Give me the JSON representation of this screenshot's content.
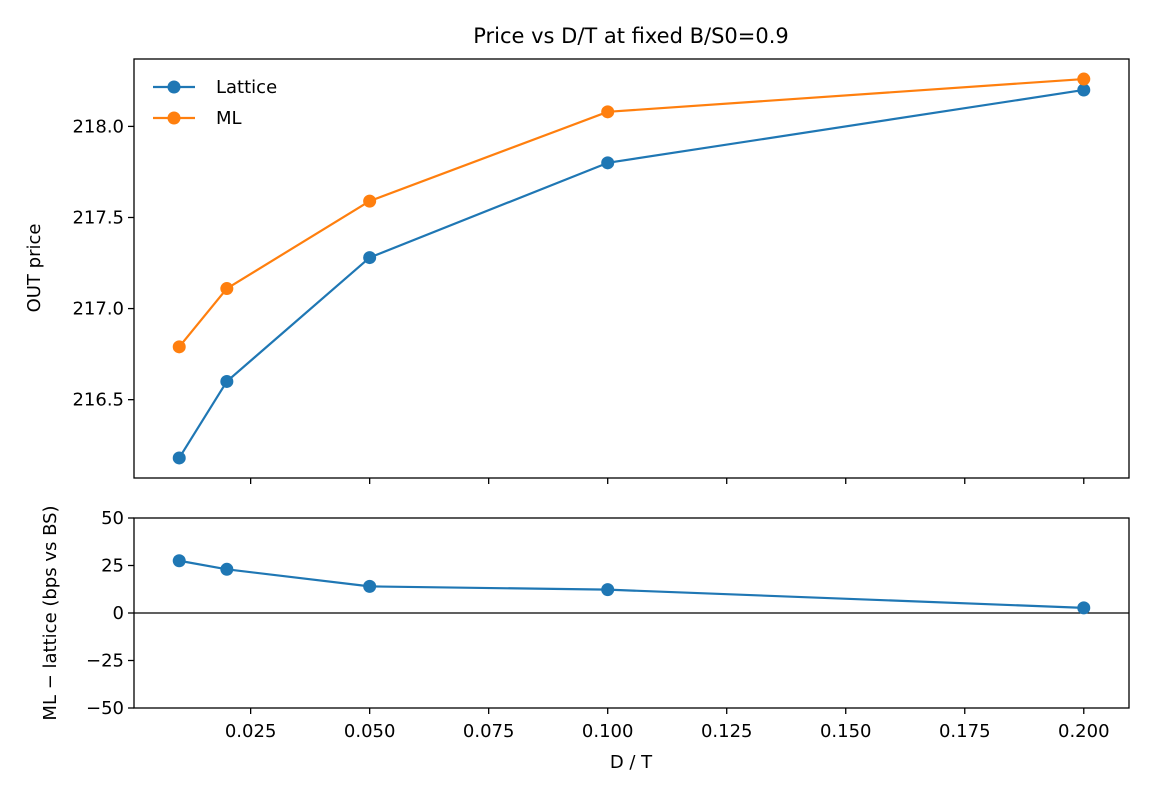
{
  "chart_data": [
    {
      "type": "line",
      "title": "Price vs D/T at fixed B/S0=0.9",
      "xlabel": "",
      "ylabel": "OUT price",
      "x": [
        0.01,
        0.02,
        0.05,
        0.1,
        0.2
      ],
      "xlim": [
        0.0005,
        0.2095
      ],
      "ylim": [
        216.07,
        218.37
      ],
      "yticks": [
        216.5,
        217.0,
        217.5,
        218.0
      ],
      "ytick_labels": [
        "216.5",
        "217.0",
        "217.5",
        "218.0"
      ],
      "series": [
        {
          "name": "Lattice",
          "color": "#1f77b4",
          "values": [
            216.18,
            216.6,
            217.28,
            217.8,
            218.2
          ]
        },
        {
          "name": "ML",
          "color": "#ff7f0e",
          "values": [
            216.79,
            217.11,
            217.59,
            218.08,
            218.26
          ]
        }
      ],
      "legend": "top-left",
      "grid": false
    },
    {
      "type": "line",
      "title": "",
      "xlabel": "D / T",
      "ylabel": "ML − lattice (bps vs BS)",
      "x": [
        0.01,
        0.02,
        0.05,
        0.1,
        0.2
      ],
      "xlim": [
        0.0005,
        0.2095
      ],
      "xticks": [
        0.025,
        0.05,
        0.075,
        0.1,
        0.125,
        0.15,
        0.175,
        0.2
      ],
      "xtick_labels": [
        "0.025",
        "0.050",
        "0.075",
        "0.100",
        "0.125",
        "0.150",
        "0.175",
        "0.200"
      ],
      "ylim": [
        -50,
        50
      ],
      "yticks": [
        -50,
        -25,
        0,
        25,
        50
      ],
      "ytick_labels": [
        "−50",
        "−25",
        "0",
        "25",
        "50"
      ],
      "series": [
        {
          "color": "#1f77b4",
          "values": [
            27.5,
            23.0,
            14.0,
            12.3,
            2.7
          ]
        }
      ],
      "reference_line": 0,
      "grid": false
    }
  ]
}
